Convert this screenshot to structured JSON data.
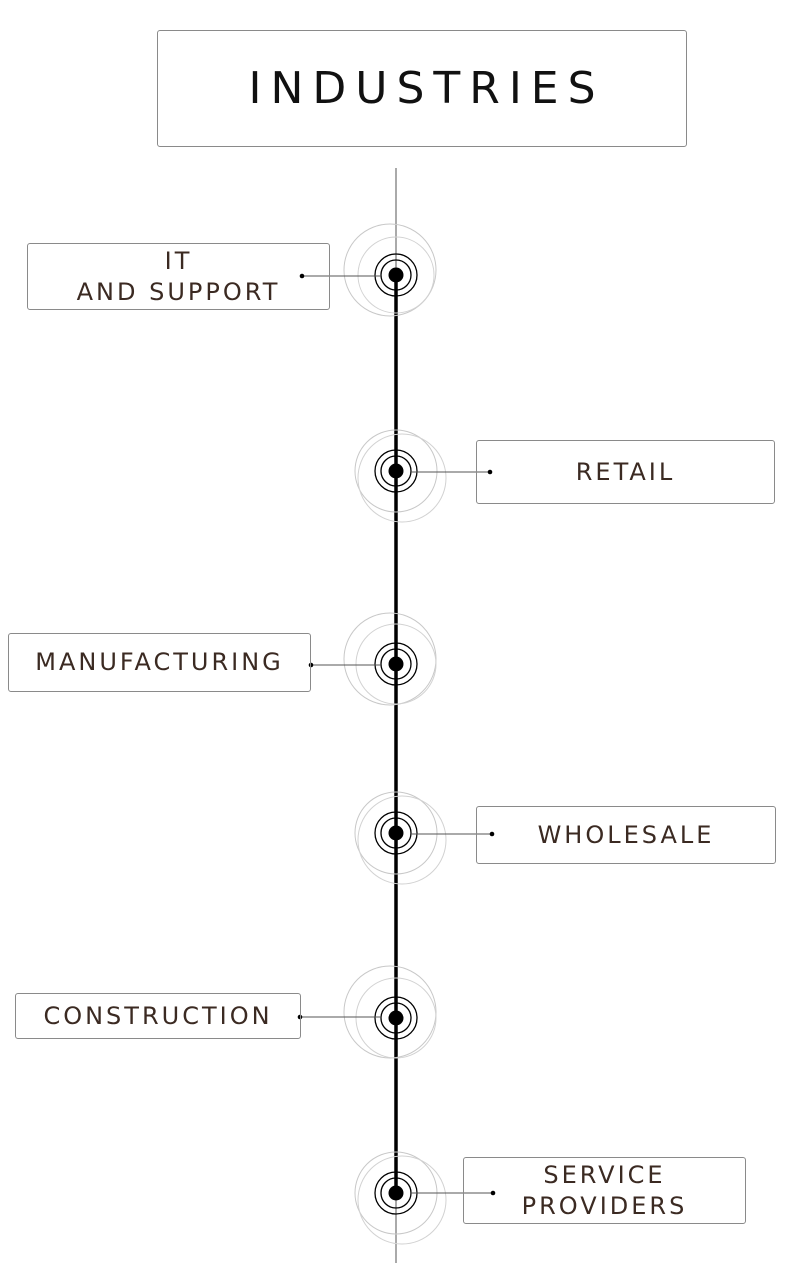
{
  "title": "INDUSTRIES",
  "colors": {
    "line": "#000000",
    "box_border": "#8a8a8a",
    "label_text": "#3b2a22",
    "ring": "#bfbfbf"
  },
  "industries": [
    {
      "label": "IT\nAND SUPPORT",
      "side": "left"
    },
    {
      "label": "RETAIL",
      "side": "right"
    },
    {
      "label": "MANUFACTURING",
      "side": "left"
    },
    {
      "label": "WHOLESALE",
      "side": "right"
    },
    {
      "label": "CONSTRUCTION",
      "side": "left"
    },
    {
      "label": "SERVICE\nPROVIDERS",
      "side": "right"
    }
  ]
}
